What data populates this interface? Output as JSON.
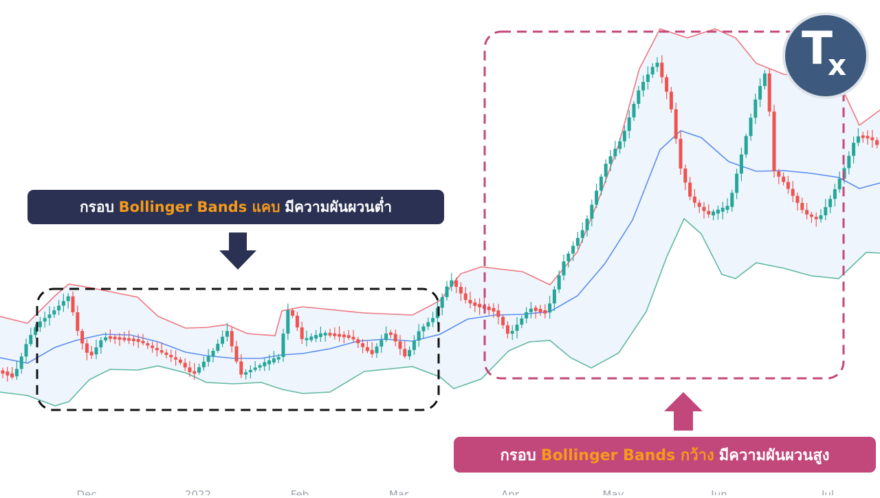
{
  "chart_data": {
    "type": "candlestick",
    "indicator": "Bollinger Bands",
    "x_tick_labels": [
      "Dec",
      "2022",
      "Feb",
      "Mar",
      "Apr",
      "May",
      "Jun",
      "Jul"
    ],
    "colors": {
      "up_candle": "#26a69a",
      "down_candle": "#ef5350",
      "upper_band": "#ef7680",
      "middle_band": "#5b8def",
      "lower_band": "#5fb8a0",
      "band_fill": "#eef5fc",
      "narrow_box": "#111111",
      "wide_box": "#c2477a"
    },
    "annotations": {
      "narrow": {
        "prefix": "กรอบ",
        "highlight": "Bollinger Bands แคบ",
        "suffix": "มีความผันผวนต่ำ"
      },
      "wide": {
        "prefix": "กรอบ",
        "highlight": "Bollinger Bands กว้าง",
        "suffix": "มีความผันผวนสูง"
      }
    },
    "logo": {
      "t": "T",
      "x": "x"
    }
  }
}
